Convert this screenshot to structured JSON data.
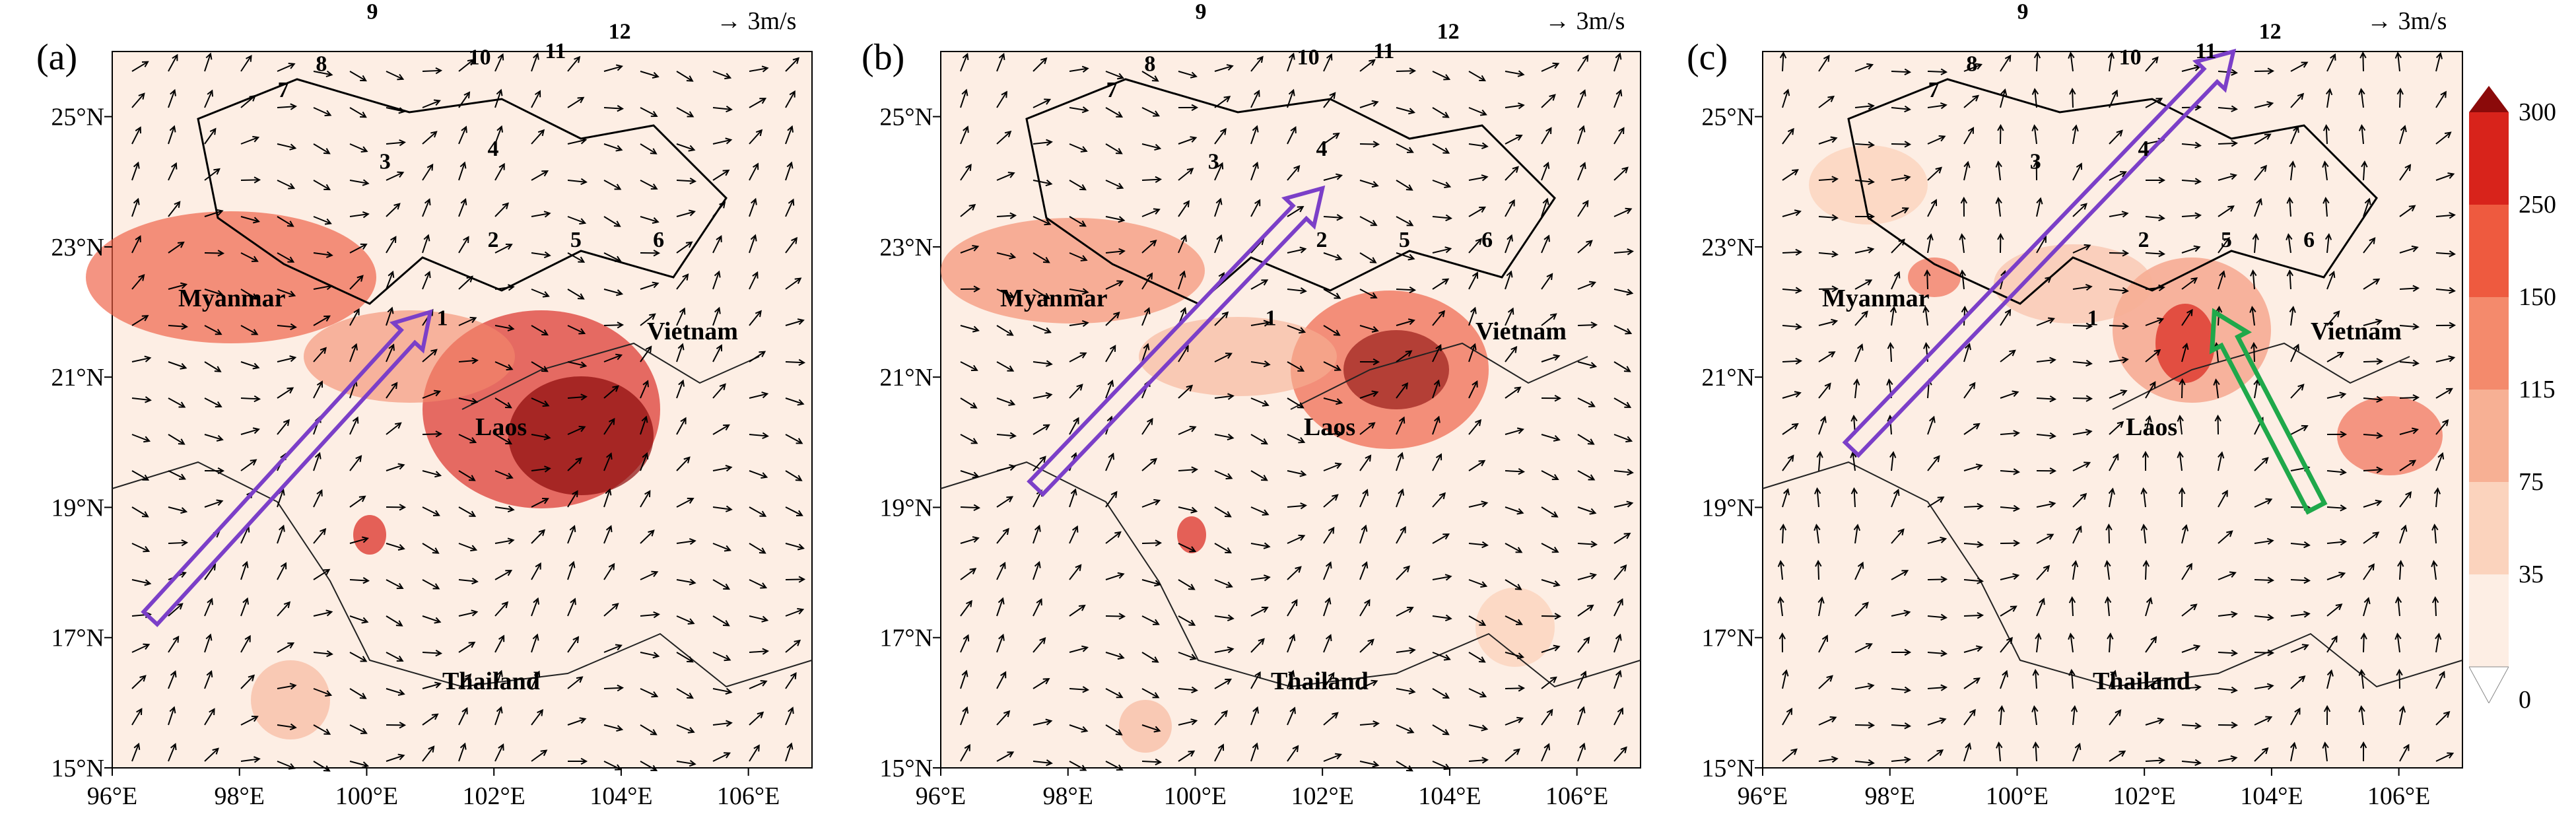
{
  "panels": [
    {
      "id": "a",
      "label": "(a)",
      "reference": "3m/s",
      "regions": [
        "Myanmar",
        "Laos",
        "Vietnam",
        "Thailand"
      ],
      "province_numbers": [
        "1",
        "2",
        "3",
        "4",
        "5",
        "6",
        "7",
        "8",
        "9",
        "10",
        "11",
        "12"
      ],
      "arrows": [
        {
          "color": "#7b3fc8",
          "from": [
            96.6,
            17.3
          ],
          "to": [
            101.0,
            22.0
          ]
        }
      ]
    },
    {
      "id": "b",
      "label": "(b)",
      "reference": "3m/s",
      "regions": [
        "Myanmar",
        "Laos",
        "Vietnam",
        "Thailand"
      ],
      "province_numbers": [
        "1",
        "2",
        "3",
        "4",
        "5",
        "6",
        "7",
        "8",
        "9",
        "10",
        "11",
        "12"
      ],
      "arrows": [
        {
          "color": "#7b3fc8",
          "from": [
            97.5,
            19.3
          ],
          "to": [
            102.0,
            23.9
          ]
        }
      ]
    },
    {
      "id": "c",
      "label": "(c)",
      "reference": "3m/s",
      "regions": [
        "Myanmar",
        "Laos",
        "Vietnam",
        "Thailand"
      ],
      "province_numbers": [
        "1",
        "2",
        "3",
        "4",
        "5",
        "6",
        "7",
        "8",
        "9",
        "10",
        "11",
        "12"
      ],
      "arrows": [
        {
          "color": "#7b3fc8",
          "from": [
            97.4,
            19.9
          ],
          "to": [
            103.4,
            26.0
          ]
        },
        {
          "color": "#1fa84a",
          "from": [
            104.7,
            19.0
          ],
          "to": [
            103.1,
            22.0
          ]
        }
      ]
    }
  ],
  "axes": {
    "lon_ticks": [
      "96°E",
      "98°E",
      "100°E",
      "102°E",
      "104°E",
      "106°E"
    ],
    "lat_ticks": [
      "15°N",
      "17°N",
      "19°N",
      "21°N",
      "23°N",
      "25°N"
    ]
  },
  "colorbar": {
    "ticks": [
      "0",
      "35",
      "75",
      "115",
      "150",
      "250",
      "300"
    ],
    "colors": [
      "#fdeee4",
      "#fbd3bd",
      "#f7b094",
      "#f48a6c",
      "#ee5a3f",
      "#d8231b",
      "#8b0a0a"
    ]
  }
}
